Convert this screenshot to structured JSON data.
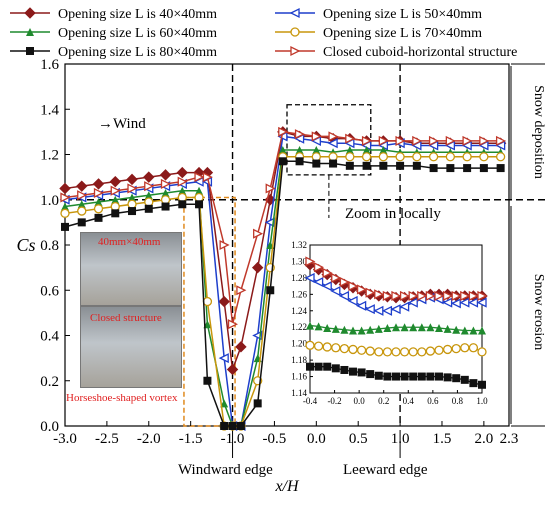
{
  "chart_data": {
    "type": "line",
    "xlabel": "x/H",
    "ylabel": "Cs",
    "xlim": [
      -3.0,
      2.3
    ],
    "ylim": [
      0.0,
      1.6
    ],
    "xticks": [
      "-3.0",
      "-2.5",
      "-2.0",
      "-1.5",
      "-1.0",
      "-0.5",
      "0.0",
      "0.5",
      "1.0",
      "1.5",
      "2.0",
      "2.3"
    ],
    "yticks": [
      "0.0",
      "0.2",
      "0.4",
      "0.6",
      "0.8",
      "1.0",
      "1.2",
      "1.4",
      "1.6"
    ],
    "legend_placement": "top",
    "series": [
      {
        "name": "Opening size L is 40×40mm",
        "color": "#8B1A1A",
        "marker": "diamond",
        "x": [
          -3.0,
          -2.8,
          -2.6,
          -2.4,
          -2.2,
          -2.0,
          -1.8,
          -1.6,
          -1.4,
          -1.3,
          -1.1,
          -1.0,
          -0.9,
          -0.7,
          -0.55,
          -0.4,
          -0.2,
          0.0,
          0.2,
          0.4,
          0.6,
          0.8,
          1.0,
          1.2,
          1.4,
          1.6,
          1.8,
          2.0,
          2.2
        ],
        "y": [
          1.05,
          1.06,
          1.07,
          1.08,
          1.09,
          1.1,
          1.11,
          1.12,
          1.12,
          1.12,
          0.55,
          0.25,
          0.35,
          0.7,
          1.0,
          1.3,
          1.28,
          1.28,
          1.27,
          1.27,
          1.26,
          1.26,
          1.26,
          1.25,
          1.25,
          1.25,
          1.25,
          1.25,
          1.25
        ]
      },
      {
        "name": "Opening size L is 50×40mm",
        "color": "#1E3FCC",
        "marker": "triangle-left",
        "x": [
          -3.0,
          -2.8,
          -2.6,
          -2.4,
          -2.2,
          -2.0,
          -1.8,
          -1.6,
          -1.4,
          -1.3,
          -1.1,
          -1.0,
          -0.9,
          -0.7,
          -0.55,
          -0.4,
          -0.2,
          0.0,
          0.2,
          0.4,
          0.6,
          0.8,
          1.0,
          1.2,
          1.4,
          1.6,
          1.8,
          2.0,
          2.2
        ],
        "y": [
          1.0,
          1.01,
          1.02,
          1.03,
          1.04,
          1.05,
          1.06,
          1.07,
          1.08,
          1.08,
          0.3,
          0.0,
          0.0,
          0.4,
          0.9,
          1.28,
          1.27,
          1.26,
          1.25,
          1.25,
          1.24,
          1.24,
          1.25,
          1.24,
          1.24,
          1.24,
          1.24,
          1.24,
          1.24
        ]
      },
      {
        "name": "Opening size L is 60×40mm",
        "color": "#1F8A2E",
        "marker": "triangle-up",
        "x": [
          -3.0,
          -2.8,
          -2.6,
          -2.4,
          -2.2,
          -2.0,
          -1.8,
          -1.6,
          -1.4,
          -1.3,
          -1.1,
          -1.0,
          -0.9,
          -0.7,
          -0.55,
          -0.4,
          -0.2,
          0.0,
          0.2,
          0.4,
          0.6,
          0.8,
          1.0,
          1.2,
          1.4,
          1.6,
          1.8,
          2.0,
          2.2
        ],
        "y": [
          0.97,
          0.98,
          0.99,
          1.0,
          1.01,
          1.02,
          1.03,
          1.04,
          1.04,
          0.45,
          0.1,
          0.0,
          0.0,
          0.3,
          0.8,
          1.22,
          1.22,
          1.22,
          1.21,
          1.22,
          1.22,
          1.22,
          1.21,
          1.21,
          1.21,
          1.21,
          1.21,
          1.21,
          1.21
        ]
      },
      {
        "name": "Opening size L is 70×40mm",
        "color": "#C8960C",
        "marker": "circle",
        "x": [
          -3.0,
          -2.8,
          -2.6,
          -2.4,
          -2.2,
          -2.0,
          -1.8,
          -1.6,
          -1.4,
          -1.3,
          -1.1,
          -1.0,
          -0.9,
          -0.7,
          -0.55,
          -0.4,
          -0.2,
          0.0,
          0.2,
          0.4,
          0.6,
          0.8,
          1.0,
          1.2,
          1.4,
          1.6,
          1.8,
          2.0,
          2.2
        ],
        "y": [
          0.94,
          0.95,
          0.96,
          0.97,
          0.98,
          0.99,
          1.0,
          1.01,
          1.01,
          0.55,
          0.0,
          0.0,
          0.0,
          0.2,
          0.7,
          1.19,
          1.19,
          1.19,
          1.19,
          1.19,
          1.19,
          1.19,
          1.19,
          1.19,
          1.19,
          1.19,
          1.19,
          1.19,
          1.19
        ]
      },
      {
        "name": "Opening size L is 80×40mm",
        "color": "#111111",
        "marker": "square",
        "x": [
          -3.0,
          -2.8,
          -2.6,
          -2.4,
          -2.2,
          -2.0,
          -1.8,
          -1.6,
          -1.4,
          -1.3,
          -1.1,
          -1.0,
          -0.9,
          -0.7,
          -0.55,
          -0.4,
          -0.2,
          0.0,
          0.2,
          0.4,
          0.6,
          0.8,
          1.0,
          1.2,
          1.4,
          1.6,
          1.8,
          2.0,
          2.2
        ],
        "y": [
          0.88,
          0.9,
          0.92,
          0.94,
          0.95,
          0.96,
          0.97,
          0.98,
          0.98,
          0.2,
          0.0,
          0.0,
          0.0,
          0.1,
          0.6,
          1.17,
          1.17,
          1.16,
          1.16,
          1.15,
          1.15,
          1.15,
          1.15,
          1.15,
          1.14,
          1.14,
          1.14,
          1.14,
          1.14
        ]
      },
      {
        "name": "Closed cuboid-horizontal structure",
        "color": "#C0392B",
        "marker": "triangle-right-open",
        "x": [
          -3.0,
          -2.8,
          -2.6,
          -2.4,
          -2.2,
          -2.0,
          -1.8,
          -1.6,
          -1.4,
          -1.3,
          -1.1,
          -1.0,
          -0.9,
          -0.7,
          -0.55,
          -0.4,
          -0.2,
          0.0,
          0.2,
          0.4,
          0.6,
          0.8,
          1.0,
          1.2,
          1.4,
          1.6,
          1.8,
          2.0,
          2.2
        ],
        "y": [
          1.01,
          1.02,
          1.03,
          1.04,
          1.05,
          1.06,
          1.07,
          1.08,
          1.1,
          1.1,
          0.8,
          0.45,
          0.6,
          0.85,
          1.05,
          1.3,
          1.29,
          1.28,
          1.28,
          1.27,
          1.26,
          1.26,
          1.26,
          1.26,
          1.26,
          1.26,
          1.26,
          1.26,
          1.26
        ]
      }
    ],
    "inset": {
      "xlim": [
        -0.4,
        1.0
      ],
      "ylim": [
        1.14,
        1.32
      ],
      "xticks": [
        "-0.4",
        "-0.2",
        "0.0",
        "0.2",
        "0.4",
        "0.6",
        "0.8",
        "1.0"
      ],
      "yticks": [
        "1.14",
        "1.16",
        "1.18",
        "1.20",
        "1.22",
        "1.24",
        "1.26",
        "1.28",
        "1.30",
        "1.32"
      ],
      "x": [
        -0.4,
        -0.33,
        -0.26,
        -0.19,
        -0.12,
        -0.05,
        0.02,
        0.09,
        0.16,
        0.23,
        0.3,
        0.37,
        0.44,
        0.51,
        0.58,
        0.65,
        0.72,
        0.79,
        0.86,
        0.93,
        1.0
      ],
      "series": [
        {
          "y": [
            1.296,
            1.29,
            1.284,
            1.278,
            1.272,
            1.268,
            1.264,
            1.26,
            1.258,
            1.257,
            1.256,
            1.256,
            1.257,
            1.258,
            1.26,
            1.26,
            1.26,
            1.258,
            1.258,
            1.258,
            1.258
          ]
        },
        {
          "y": [
            1.28,
            1.275,
            1.27,
            1.264,
            1.258,
            1.252,
            1.246,
            1.242,
            1.24,
            1.24,
            1.242,
            1.245,
            1.25,
            1.254,
            1.256,
            1.254,
            1.25,
            1.249,
            1.25,
            1.25,
            1.25
          ]
        },
        {
          "y": [
            1.222,
            1.221,
            1.219,
            1.218,
            1.217,
            1.216,
            1.216,
            1.217,
            1.218,
            1.219,
            1.22,
            1.22,
            1.22,
            1.22,
            1.22,
            1.219,
            1.218,
            1.217,
            1.216,
            1.216,
            1.216
          ]
        },
        {
          "y": [
            1.198,
            1.197,
            1.196,
            1.195,
            1.194,
            1.193,
            1.192,
            1.191,
            1.19,
            1.19,
            1.19,
            1.19,
            1.19,
            1.19,
            1.191,
            1.192,
            1.193,
            1.194,
            1.195,
            1.195,
            1.19
          ]
        },
        {
          "y": [
            1.172,
            1.172,
            1.172,
            1.17,
            1.168,
            1.166,
            1.165,
            1.163,
            1.161,
            1.16,
            1.16,
            1.16,
            1.16,
            1.16,
            1.16,
            1.16,
            1.159,
            1.158,
            1.156,
            1.152,
            1.15
          ]
        },
        {
          "y": [
            1.3,
            1.293,
            1.286,
            1.28,
            1.275,
            1.27,
            1.266,
            1.262,
            1.26,
            1.258,
            1.258,
            1.258,
            1.258,
            1.258,
            1.258,
            1.258,
            1.258,
            1.258,
            1.258,
            1.258,
            1.258
          ]
        }
      ]
    }
  },
  "annotations": {
    "wind": "→Wind",
    "zoom": "Zoom in locally",
    "windward_edge": "Windward edge",
    "leeward_edge": "Leeward edge",
    "snow_deposition": "Snow deposition",
    "snow_erosion": "Snow erosion",
    "photo_label_top": "40mm×40mm",
    "photo_label_mid": "Closed structure",
    "photo_label_bottom": "Horseshoe-shaped vortex"
  }
}
